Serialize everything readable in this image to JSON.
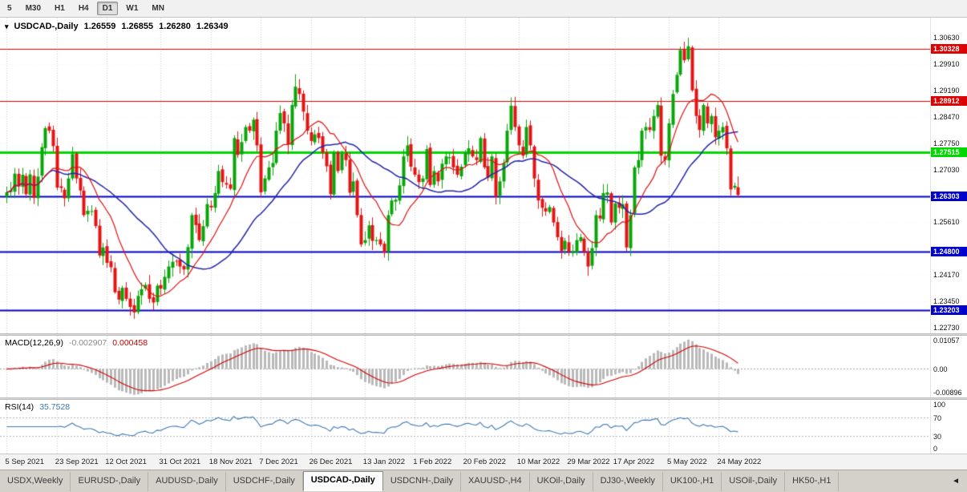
{
  "toolbar": {
    "periods": [
      {
        "label": "5",
        "active": false
      },
      {
        "label": "M30",
        "active": false
      },
      {
        "label": "H1",
        "active": false
      },
      {
        "label": "H4",
        "active": false
      },
      {
        "label": "D1",
        "active": true
      },
      {
        "label": "W1",
        "active": false
      },
      {
        "label": "MN",
        "active": false
      }
    ]
  },
  "chart": {
    "dropdown_icon": "▾",
    "title": "USDCAD-,Daily",
    "quote": {
      "open": "1.26559",
      "high": "1.26855",
      "low": "1.26280",
      "close": "1.26349"
    },
    "price_axis_labels": [
      {
        "text": "1.30630",
        "price": 1.3063
      },
      {
        "text": "1.29910",
        "price": 1.2991
      },
      {
        "text": "1.29190",
        "price": 1.2919
      },
      {
        "text": "1.28470",
        "price": 1.2847
      },
      {
        "text": "1.27750",
        "price": 1.2775
      },
      {
        "text": "1.27030",
        "price": 1.2703
      },
      {
        "text": "1.25610",
        "price": 1.2561
      },
      {
        "text": "1.24170",
        "price": 1.2417
      },
      {
        "text": "1.23450",
        "price": 1.2345
      },
      {
        "text": "1.22730",
        "price": 1.2273
      }
    ],
    "colors": {
      "up": "#0aa50a",
      "down": "#e41414",
      "ma_fast": "#e01010",
      "ma_slow": "#2424aa",
      "grid": "#cccccc"
    }
  },
  "macd": {
    "label": "MACD(12,26,9)",
    "value_main": "-0.002907",
    "value_signal": "0.000458",
    "axis": [
      {
        "text": "0.01057",
        "value": 0.01057
      },
      {
        "text": "0.00",
        "value": 0
      },
      {
        "text": "-0.00896",
        "value": -0.00896
      }
    ],
    "colors": {
      "hist": "#b9b9b9",
      "signal": "#d40000"
    }
  },
  "rsi": {
    "label": "RSI(14)",
    "value": "35.7528",
    "axis": [
      {
        "text": "100",
        "value": 100
      },
      {
        "text": "70",
        "value": 70
      },
      {
        "text": "30",
        "value": 30
      },
      {
        "text": "0",
        "value": 0
      }
    ],
    "color": "#3c78b4"
  },
  "date_axis": {
    "ticks": [
      {
        "label": "5 Sep 2021",
        "index": 0
      },
      {
        "label": "23 Sep 2021",
        "index": 13
      },
      {
        "label": "12 Oct 2021",
        "index": 26
      },
      {
        "label": "31 Oct 2021",
        "index": 40
      },
      {
        "label": "18 Nov 2021",
        "index": 53
      },
      {
        "label": "7 Dec 2021",
        "index": 66
      },
      {
        "label": "26 Dec 2021",
        "index": 79
      },
      {
        "label": "13 Jan 2022",
        "index": 93
      },
      {
        "label": "1 Feb 2022",
        "index": 106
      },
      {
        "label": "20 Feb 2022",
        "index": 119
      },
      {
        "label": "10 Mar 2022",
        "index": 133
      },
      {
        "label": "29 Mar 2022",
        "index": 146
      },
      {
        "label": "17 Apr 2022",
        "index": 158
      },
      {
        "label": "5 May 2022",
        "index": 172
      },
      {
        "label": "24 May 2022",
        "index": 185
      }
    ]
  },
  "tabbar": {
    "tabs": [
      {
        "label": "USDX,Weekly",
        "active": false
      },
      {
        "label": "EURUSD-,Daily",
        "active": false
      },
      {
        "label": "AUDUSD-,Daily",
        "active": false
      },
      {
        "label": "USDCHF-,Daily",
        "active": false
      },
      {
        "label": "USDCAD-,Daily",
        "active": true
      },
      {
        "label": "USDCNH-,Daily",
        "active": false
      },
      {
        "label": "XAUUSD-,H4",
        "active": false
      },
      {
        "label": "UKOil-,Daily",
        "active": false
      },
      {
        "label": "DJ30-,Weekly",
        "active": false
      },
      {
        "label": "UK100-,H1",
        "active": false
      },
      {
        "label": "USOil-,Daily",
        "active": false
      },
      {
        "label": "HK50-,H1",
        "active": false
      }
    ],
    "scroll_icon": "◄"
  },
  "chart_data": {
    "type": "candlestick",
    "symbol": "USDCAD-",
    "timeframe": "Daily",
    "y_range": [
      1.2258,
      1.3118
    ],
    "y_grid_prices": [
      1.3063,
      1.2991,
      1.2919,
      1.2847,
      1.2775,
      1.2703,
      1.2631,
      1.2561,
      1.2489,
      1.2417,
      1.2345,
      1.2273
    ],
    "seed": 11,
    "closes": [
      1.2642,
      1.2648,
      1.2693,
      1.2658,
      1.269,
      1.2637,
      1.2691,
      1.2627,
      1.2685,
      1.2765,
      1.2817,
      1.281,
      1.2768,
      1.2655,
      1.2654,
      1.2626,
      1.268,
      1.2746,
      1.268,
      1.2647,
      1.258,
      1.2592,
      1.2591,
      1.255,
      1.247,
      1.2492,
      1.245,
      1.2438,
      1.237,
      1.235,
      1.2382,
      1.2352,
      1.233,
      1.2315,
      1.236,
      1.2378,
      1.239,
      1.2352,
      1.2342,
      1.2388,
      1.238,
      1.2412,
      1.244,
      1.2453,
      1.2455,
      1.244,
      1.2432,
      1.2493,
      1.258,
      1.2553,
      1.2512,
      1.255,
      1.261,
      1.2601,
      1.264,
      1.27,
      1.267,
      1.2663,
      1.2652,
      1.279,
      1.2744,
      1.2779,
      1.282,
      1.281,
      1.284,
      1.277,
      1.2642,
      1.268,
      1.271,
      1.2722,
      1.281,
      1.2858,
      1.283,
      1.2772,
      1.288,
      1.293,
      1.291,
      1.2862,
      1.281,
      1.2782,
      1.28,
      1.279,
      1.275,
      1.2713,
      1.2637,
      1.275,
      1.27,
      1.2748,
      1.273,
      1.2641,
      1.2672,
      1.258,
      1.25,
      1.2512,
      1.2552,
      1.251,
      1.2512,
      1.25,
      1.2478,
      1.258,
      1.262,
      1.2622,
      1.2661,
      1.274,
      1.277,
      1.2712,
      1.269,
      1.267,
      1.268,
      1.276,
      1.2662,
      1.27,
      1.2672,
      1.272,
      1.274,
      1.2738,
      1.271,
      1.269,
      1.2712,
      1.275,
      1.2762,
      1.274,
      1.273,
      1.279,
      1.271,
      1.2682,
      1.274,
      1.263,
      1.2672,
      1.2722,
      1.281,
      1.2878,
      1.282,
      1.277,
      1.2742,
      1.282,
      1.277,
      1.268,
      1.262,
      1.26,
      1.259,
      1.2602,
      1.256,
      1.252,
      1.2482,
      1.251,
      1.248,
      1.2482,
      1.2512,
      1.252,
      1.248,
      1.244,
      1.249,
      1.258,
      1.2571,
      1.264,
      1.2642,
      1.256,
      1.2612,
      1.26,
      1.261,
      1.2492,
      1.258,
      1.271,
      1.273,
      1.281,
      1.282,
      1.2812,
      1.285,
      1.288,
      1.2742,
      1.273,
      1.283,
      1.291,
      1.2962,
      1.303,
      1.3002,
      1.304,
      1.292,
      1.285,
      1.2812,
      1.288,
      1.283,
      1.285,
      1.2792,
      1.281,
      1.282,
      1.2762,
      1.265,
      1.266,
      1.26349
    ],
    "high_overrides": {
      "75": 1.2964,
      "131": 1.2901,
      "177": 1.3063
    },
    "last_ohlc": {
      "open": 1.26559,
      "high": 1.26855,
      "low": 1.2628,
      "close": 1.26349
    },
    "horizontal_levels": [
      {
        "price": 1.30328,
        "tag": "1.30328",
        "hex": "#dd0000",
        "width": 1
      },
      {
        "price": 1.28912,
        "tag": "1.28912",
        "hex": "#dd0000",
        "width": 1
      },
      {
        "price": 1.27515,
        "tag": "1.27515",
        "hex": "#00d800",
        "width": 3
      },
      {
        "price": 1.26303,
        "tag": "1.26303",
        "hex": "#0202cc",
        "width": 2
      },
      {
        "price": 1.248,
        "tag": "1.24800",
        "hex": "#0202cc",
        "width": 2
      },
      {
        "price": 1.23203,
        "tag": "1.23203",
        "hex": "#0202cc",
        "width": 2
      }
    ],
    "moving_averages": [
      {
        "period": 12,
        "hex": "#e01010"
      },
      {
        "period": 30,
        "hex": "#2424aa"
      }
    ],
    "macd": {
      "fast": 12,
      "slow": 26,
      "signal": 9,
      "last_main": -0.002907,
      "last_signal": 0.000458,
      "range": [
        -0.0098,
        0.0114
      ]
    },
    "rsi": {
      "period": 14,
      "last": 35.7528,
      "range": [
        -8,
        108
      ],
      "levels": [
        70,
        30
      ]
    }
  }
}
